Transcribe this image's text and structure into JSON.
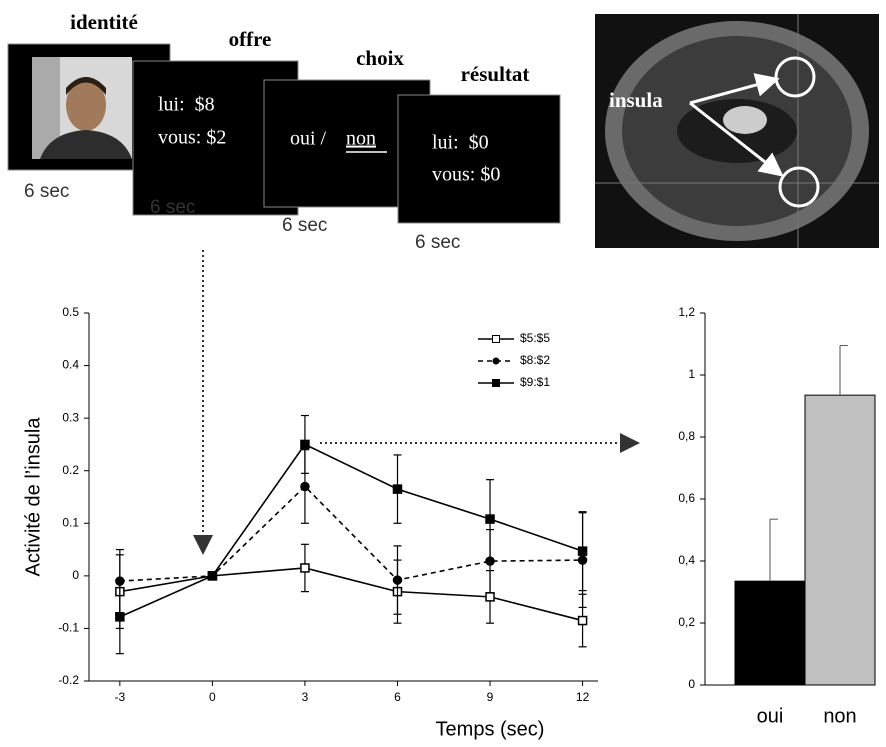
{
  "timeline": {
    "frames": [
      {
        "title": "identité",
        "duration": "6 sec"
      },
      {
        "title": "offre",
        "lines": [
          "lui:  $8",
          "vous: $2"
        ],
        "duration": "6 sec"
      },
      {
        "title": "choix",
        "choice": [
          "oui /",
          "non"
        ],
        "duration": "6 sec"
      },
      {
        "title": "résultat",
        "lines": [
          "lui:  $0",
          "vous: $0"
        ],
        "duration": "6 sec"
      }
    ]
  },
  "brain": {
    "label": "insula"
  },
  "chart_data": [
    {
      "type": "line",
      "ylabel": "Activité de l’insula",
      "xlabel": "Temps (sec)",
      "x": [
        -3,
        0,
        3,
        6,
        9,
        12
      ],
      "xlim": [
        -4,
        12.5
      ],
      "xticks": [
        -3,
        0,
        3,
        6,
        9,
        12
      ],
      "ylim": [
        -0.2,
        0.5
      ],
      "yticks": [
        0.5,
        0.4,
        0.3,
        0.2,
        0.1,
        0,
        -0.1,
        -0.2
      ],
      "legend": "upper right",
      "series": [
        {
          "name": "$5:$5",
          "color": "#000000",
          "dash": "solid",
          "marker": "open-square",
          "values": [
            -0.03,
            0,
            0.015,
            -0.03,
            -0.04,
            -0.085
          ],
          "errors": [
            0.07,
            0,
            0.045,
            0.06,
            0.05,
            0.05
          ]
        },
        {
          "name": "$8:$2",
          "color": "#000000",
          "dash": "dashed",
          "marker": "circle",
          "values": [
            -0.01,
            0,
            0.17,
            -0.008,
            0.028,
            0.03
          ],
          "errors": [
            0.06,
            0,
            0.07,
            0.065,
            0.06,
            0.09
          ]
        },
        {
          "name": "$9:$1",
          "color": "#000000",
          "dash": "solid",
          "marker": "square",
          "values": [
            -0.078,
            0,
            0.25,
            0.165,
            0.108,
            0.047
          ],
          "errors": [
            0.07,
            0,
            0.055,
            0.065,
            0.075,
            0.075
          ]
        }
      ]
    },
    {
      "type": "bar",
      "categories": [
        "oui",
        "non"
      ],
      "colors": [
        "#000000",
        "#c0c0c0"
      ],
      "values": [
        0.335,
        0.935
      ],
      "errors": [
        0.2,
        0.16
      ],
      "ylim": [
        0,
        1.2
      ],
      "yticks": [
        {
          "value": 1.2,
          "label": "1,2"
        },
        1,
        {
          "value": 0.8,
          "label": "0,8"
        },
        {
          "value": 0.6,
          "label": "0,6"
        },
        {
          "value": 0.4,
          "label": "0,4"
        },
        {
          "value": 0.2,
          "label": "0,2"
        },
        0
      ]
    }
  ]
}
